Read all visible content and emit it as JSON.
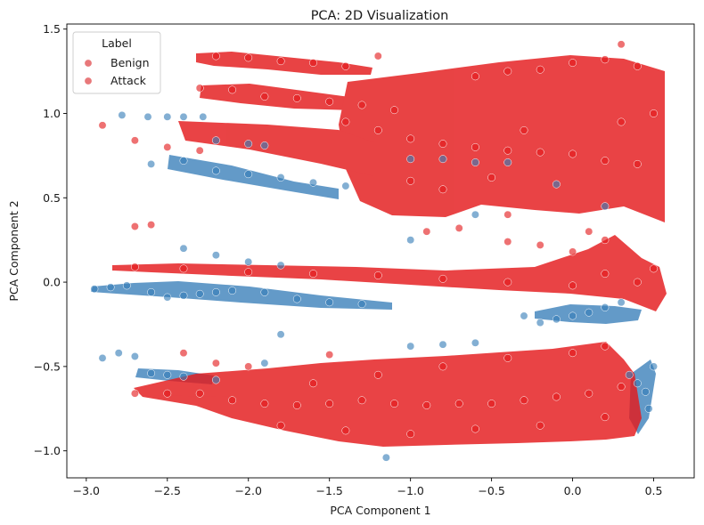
{
  "chart_data": {
    "type": "scatter",
    "title": "PCA: 2D Visualization",
    "xlabel": "PCA Component 1",
    "ylabel": "PCA Component 2",
    "xlim": [
      -3.12,
      0.75
    ],
    "ylim": [
      -1.16,
      1.53
    ],
    "xticks": [
      -3.0,
      -2.5,
      -2.0,
      -1.5,
      -1.0,
      -0.5,
      0.0,
      0.5
    ],
    "xtick_labels": [
      "−3.0",
      "−2.5",
      "−2.0",
      "−1.5",
      "−1.0",
      "−0.5",
      "0.0",
      "0.5"
    ],
    "yticks": [
      -1.0,
      -0.5,
      0.0,
      0.5,
      1.0,
      1.5
    ],
    "ytick_labels": [
      "−1.0",
      "−0.5",
      "0.0",
      "0.5",
      "1.0",
      "1.5"
    ],
    "grid": false,
    "legend": {
      "title": "Label",
      "placement": "top-left",
      "entries": [
        {
          "label": "Benign",
          "color": "#e8787a"
        },
        {
          "label": "Attack",
          "color": "#e8787a"
        }
      ]
    },
    "series": [
      {
        "name": "Benign",
        "color": "#377eb8",
        "points": [
          [
            -2.95,
            -0.04
          ],
          [
            -2.85,
            -0.03
          ],
          [
            -2.75,
            -0.02
          ],
          [
            -2.6,
            -0.06
          ],
          [
            -2.5,
            -0.09
          ],
          [
            -2.4,
            -0.08
          ],
          [
            -2.3,
            -0.07
          ],
          [
            -2.2,
            -0.06
          ],
          [
            -2.1,
            -0.05
          ],
          [
            -1.9,
            -0.06
          ],
          [
            -1.7,
            -0.1
          ],
          [
            -1.5,
            -0.12
          ],
          [
            -1.3,
            -0.13
          ],
          [
            -2.78,
            0.99
          ],
          [
            -2.62,
            0.98
          ],
          [
            -2.5,
            0.98
          ],
          [
            -2.4,
            0.98
          ],
          [
            -2.28,
            0.98
          ],
          [
            -2.6,
            0.7
          ],
          [
            -2.4,
            0.72
          ],
          [
            -2.2,
            0.66
          ],
          [
            -2.0,
            0.64
          ],
          [
            -1.8,
            0.62
          ],
          [
            -1.6,
            0.59
          ],
          [
            -1.4,
            0.57
          ],
          [
            -2.2,
            0.84
          ],
          [
            -2.0,
            0.82
          ],
          [
            -1.9,
            0.81
          ],
          [
            -1.0,
            0.73
          ],
          [
            -0.8,
            0.73
          ],
          [
            -0.6,
            0.71
          ],
          [
            -0.4,
            0.71
          ],
          [
            -2.4,
            0.2
          ],
          [
            -2.2,
            0.16
          ],
          [
            -2.0,
            0.12
          ],
          [
            -1.8,
            0.1
          ],
          [
            -0.3,
            -0.2
          ],
          [
            -0.2,
            -0.24
          ],
          [
            -0.1,
            -0.22
          ],
          [
            0.0,
            -0.2
          ],
          [
            0.1,
            -0.18
          ],
          [
            0.2,
            -0.15
          ],
          [
            0.3,
            -0.12
          ],
          [
            -1.0,
            -0.38
          ],
          [
            -0.8,
            -0.37
          ],
          [
            -0.6,
            -0.36
          ],
          [
            -2.9,
            -0.45
          ],
          [
            -2.8,
            -0.42
          ],
          [
            -2.7,
            -0.44
          ],
          [
            -2.6,
            -0.54
          ],
          [
            -2.5,
            -0.55
          ],
          [
            -2.4,
            -0.56
          ],
          [
            -2.2,
            -0.58
          ],
          [
            -1.9,
            -0.48
          ],
          [
            -1.8,
            -0.31
          ],
          [
            0.35,
            -0.55
          ],
          [
            0.4,
            -0.6
          ],
          [
            0.45,
            -0.65
          ],
          [
            0.47,
            -0.75
          ],
          [
            0.5,
            -0.5
          ],
          [
            -1.15,
            -1.04
          ],
          [
            0.2,
            0.45
          ],
          [
            -0.1,
            0.58
          ],
          [
            -0.6,
            0.4
          ],
          [
            -1.0,
            0.25
          ]
        ]
      },
      {
        "name": "Attack",
        "color": "#e41a1c",
        "points": [
          [
            -2.2,
            1.34
          ],
          [
            -2.0,
            1.33
          ],
          [
            -1.8,
            1.31
          ],
          [
            -1.6,
            1.3
          ],
          [
            -1.4,
            1.28
          ],
          [
            -2.3,
            1.15
          ],
          [
            -2.1,
            1.14
          ],
          [
            -1.9,
            1.1
          ],
          [
            -1.7,
            1.09
          ],
          [
            -1.5,
            1.07
          ],
          [
            -1.3,
            1.05
          ],
          [
            -1.1,
            1.02
          ],
          [
            -0.6,
            1.22
          ],
          [
            -0.4,
            1.25
          ],
          [
            -0.2,
            1.26
          ],
          [
            0.0,
            1.3
          ],
          [
            0.2,
            1.32
          ],
          [
            0.4,
            1.28
          ],
          [
            -1.2,
            0.9
          ],
          [
            -1.0,
            0.85
          ],
          [
            -0.8,
            0.82
          ],
          [
            -0.6,
            0.8
          ],
          [
            -0.4,
            0.78
          ],
          [
            -0.2,
            0.77
          ],
          [
            0.0,
            0.76
          ],
          [
            0.2,
            0.72
          ],
          [
            0.4,
            0.7
          ],
          [
            -1.4,
            0.95
          ],
          [
            -1.0,
            0.6
          ],
          [
            -0.8,
            0.55
          ],
          [
            -0.5,
            0.62
          ],
          [
            -0.3,
            0.9
          ],
          [
            0.3,
            0.95
          ],
          [
            0.5,
            1.0
          ],
          [
            -0.9,
            0.3
          ],
          [
            -0.7,
            0.32
          ],
          [
            -2.9,
            0.93
          ],
          [
            -2.7,
            0.84
          ],
          [
            -2.5,
            0.8
          ],
          [
            -2.3,
            0.78
          ],
          [
            -2.7,
            0.33
          ],
          [
            -2.6,
            0.34
          ],
          [
            -2.7,
            0.09
          ],
          [
            -2.4,
            0.08
          ],
          [
            -2.0,
            0.06
          ],
          [
            -1.6,
            0.05
          ],
          [
            -1.2,
            0.04
          ],
          [
            -0.8,
            0.02
          ],
          [
            -0.4,
            0.0
          ],
          [
            0.0,
            -0.02
          ],
          [
            0.2,
            0.05
          ],
          [
            0.4,
            0.0
          ],
          [
            0.5,
            0.08
          ],
          [
            0.0,
            0.18
          ],
          [
            0.2,
            0.25
          ],
          [
            0.1,
            0.3
          ],
          [
            -0.4,
            0.24
          ],
          [
            -0.2,
            0.22
          ],
          [
            -2.7,
            -0.66
          ],
          [
            -2.5,
            -0.66
          ],
          [
            -2.3,
            -0.66
          ],
          [
            -2.1,
            -0.7
          ],
          [
            -1.9,
            -0.72
          ],
          [
            -1.7,
            -0.73
          ],
          [
            -1.5,
            -0.72
          ],
          [
            -1.3,
            -0.7
          ],
          [
            -1.1,
            -0.72
          ],
          [
            -0.9,
            -0.73
          ],
          [
            -0.7,
            -0.72
          ],
          [
            -0.5,
            -0.72
          ],
          [
            -0.3,
            -0.7
          ],
          [
            -0.1,
            -0.68
          ],
          [
            0.1,
            -0.66
          ],
          [
            0.3,
            -0.62
          ],
          [
            -1.8,
            -0.85
          ],
          [
            -1.4,
            -0.88
          ],
          [
            -1.0,
            -0.9
          ],
          [
            -0.6,
            -0.87
          ],
          [
            -0.2,
            -0.85
          ],
          [
            0.2,
            -0.8
          ],
          [
            -1.6,
            -0.6
          ],
          [
            -1.2,
            -0.55
          ],
          [
            -0.8,
            -0.5
          ],
          [
            -0.4,
            -0.45
          ],
          [
            0.0,
            -0.42
          ],
          [
            0.2,
            -0.38
          ],
          [
            -2.4,
            -0.42
          ],
          [
            -2.2,
            -0.48
          ],
          [
            -2.0,
            -0.5
          ],
          [
            -1.5,
            -0.43
          ],
          [
            -0.4,
            0.4
          ],
          [
            0.3,
            1.41
          ],
          [
            -1.2,
            1.34
          ]
        ]
      }
    ]
  }
}
